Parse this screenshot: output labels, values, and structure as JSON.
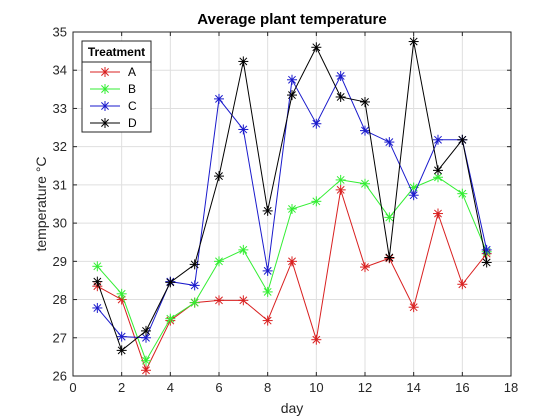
{
  "chart_data": {
    "type": "line",
    "title": "Average plant temperature",
    "xlabel": "day",
    "ylabel": "temperature °C",
    "xlim": [
      0,
      18
    ],
    "ylim": [
      26,
      35
    ],
    "xticks": [
      0,
      2,
      4,
      6,
      8,
      10,
      12,
      14,
      16,
      18
    ],
    "yticks": [
      26,
      27,
      28,
      29,
      30,
      31,
      32,
      33,
      34,
      35
    ],
    "grid": true,
    "legend": {
      "title": "Treatment",
      "placement": "top-left"
    },
    "x": [
      1,
      2,
      3,
      4,
      5,
      6,
      7,
      8,
      9,
      10,
      11,
      12,
      13,
      14,
      15,
      16,
      17
    ],
    "series": [
      {
        "name": "A",
        "color": "#d92020",
        "values": [
          28.35,
          28.0,
          26.15,
          27.45,
          27.92,
          27.98,
          27.98,
          27.45,
          29.0,
          26.95,
          30.87,
          28.85,
          29.08,
          27.8,
          30.25,
          28.4,
          29.2
        ]
      },
      {
        "name": "B",
        "color": "#33ee33",
        "values": [
          28.87,
          28.15,
          26.4,
          27.5,
          27.92,
          29.0,
          29.3,
          28.2,
          30.37,
          30.57,
          31.13,
          31.03,
          30.15,
          30.93,
          31.2,
          30.77,
          29.25
        ]
      },
      {
        "name": "C",
        "color": "#1a1acc",
        "values": [
          27.78,
          27.03,
          27.0,
          28.47,
          28.37,
          33.25,
          32.45,
          28.75,
          33.75,
          32.6,
          33.85,
          32.42,
          32.12,
          30.73,
          32.18,
          32.18,
          29.3
        ]
      },
      {
        "name": "D",
        "color": "#000000",
        "values": [
          28.47,
          26.67,
          27.18,
          28.45,
          28.92,
          31.23,
          34.23,
          30.32,
          33.35,
          34.6,
          33.3,
          33.17,
          29.1,
          34.75,
          31.38,
          32.18,
          28.97
        ]
      }
    ]
  }
}
